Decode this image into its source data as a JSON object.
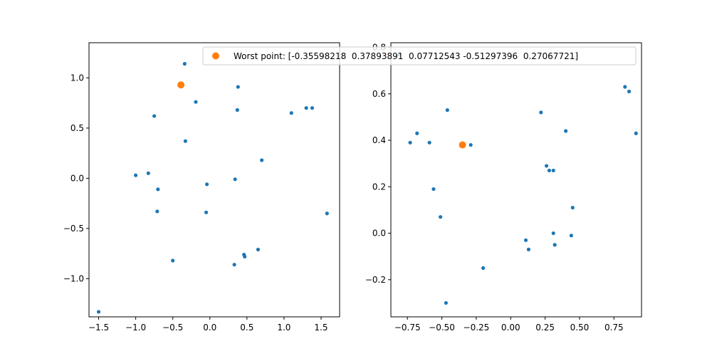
{
  "chart_data": [
    {
      "type": "scatter",
      "xlim": [
        -1.63,
        1.75
      ],
      "ylim": [
        -1.38,
        1.35
      ],
      "xticks": [
        -1.5,
        -1.0,
        -0.5,
        0.0,
        0.5,
        1.0,
        1.5
      ],
      "xtick_labels": [
        "−1.5",
        "−1.0",
        "−0.5",
        "0.0",
        "0.5",
        "1.0",
        "1.5"
      ],
      "yticks": [
        -1.0,
        -0.5,
        0.0,
        0.5,
        1.0
      ],
      "ytick_labels": [
        "−1.0",
        "−0.5",
        "0.0",
        "0.5",
        "1.0"
      ],
      "series": [
        {
          "color": "#1f77b4",
          "marker_size": "small",
          "points": [
            [
              -0.34,
              1.14
            ],
            [
              0.38,
              0.91
            ],
            [
              -0.19,
              0.76
            ],
            [
              0.37,
              0.68
            ],
            [
              -0.75,
              0.62
            ],
            [
              1.1,
              0.65
            ],
            [
              1.3,
              0.7
            ],
            [
              1.38,
              0.7
            ],
            [
              -0.33,
              0.37
            ],
            [
              0.7,
              0.18
            ],
            [
              -1.0,
              0.03
            ],
            [
              -0.83,
              0.05
            ],
            [
              0.34,
              -0.01
            ],
            [
              -0.04,
              -0.06
            ],
            [
              -0.7,
              -0.11
            ],
            [
              -0.71,
              -0.33
            ],
            [
              -0.05,
              -0.34
            ],
            [
              1.58,
              -0.35
            ],
            [
              0.65,
              -0.71
            ],
            [
              0.46,
              -0.76
            ],
            [
              0.47,
              -0.78
            ],
            [
              -0.5,
              -0.82
            ],
            [
              0.33,
              -0.86
            ],
            [
              -1.5,
              -1.33
            ]
          ]
        },
        {
          "name": "Worst point: [-0.35598218  0.37893891  0.07712543 -0.51297396  0.27067721]",
          "color": "#ff7f0e",
          "marker_size": "large",
          "points": [
            [
              -0.39,
              0.93
            ]
          ]
        }
      ]
    },
    {
      "type": "scatter",
      "xlim": [
        -0.87,
        0.95
      ],
      "ylim": [
        -0.36,
        0.82
      ],
      "xticks": [
        -0.75,
        -0.5,
        -0.25,
        0.0,
        0.25,
        0.5,
        0.75
      ],
      "xtick_labels": [
        "−0.75",
        "−0.50",
        "−0.25",
        "0.00",
        "0.25",
        "0.50",
        "0.75"
      ],
      "yticks": [
        -0.2,
        0.0,
        0.2,
        0.4,
        0.6,
        0.8
      ],
      "ytick_labels": [
        "−0.2",
        "0.0",
        "0.2",
        "0.4",
        "0.6",
        "0.8"
      ],
      "series": [
        {
          "color": "#1f77b4",
          "marker_size": "small",
          "points": [
            [
              -0.81,
              0.77
            ],
            [
              -0.73,
              0.39
            ],
            [
              -0.68,
              0.43
            ],
            [
              -0.59,
              0.39
            ],
            [
              -0.56,
              0.19
            ],
            [
              -0.51,
              0.07
            ],
            [
              -0.46,
              0.53
            ],
            [
              -0.29,
              0.38
            ],
            [
              -0.2,
              -0.15
            ],
            [
              -0.47,
              -0.3
            ],
            [
              0.22,
              0.52
            ],
            [
              0.26,
              0.29
            ],
            [
              0.28,
              0.27
            ],
            [
              0.31,
              0.27
            ],
            [
              0.4,
              0.44
            ],
            [
              0.45,
              0.11
            ],
            [
              0.11,
              -0.03
            ],
            [
              0.13,
              -0.07
            ],
            [
              0.31,
              0.0
            ],
            [
              0.32,
              -0.05
            ],
            [
              0.44,
              -0.01
            ],
            [
              0.83,
              0.63
            ],
            [
              0.86,
              0.61
            ],
            [
              0.91,
              0.43
            ]
          ]
        },
        {
          "name": "Worst point: [-0.35598218  0.37893891  0.07712543 -0.51297396  0.27067721]",
          "color": "#ff7f0e",
          "marker_size": "large",
          "points": [
            [
              -0.35,
              0.38
            ]
          ]
        }
      ]
    }
  ],
  "legend": {
    "label": "Worst point: [-0.35598218  0.37893891  0.07712543 -0.51297396  0.27067721]",
    "color": "#ff7f0e",
    "placement": "upper-right of left plot, overlapping right plot"
  }
}
